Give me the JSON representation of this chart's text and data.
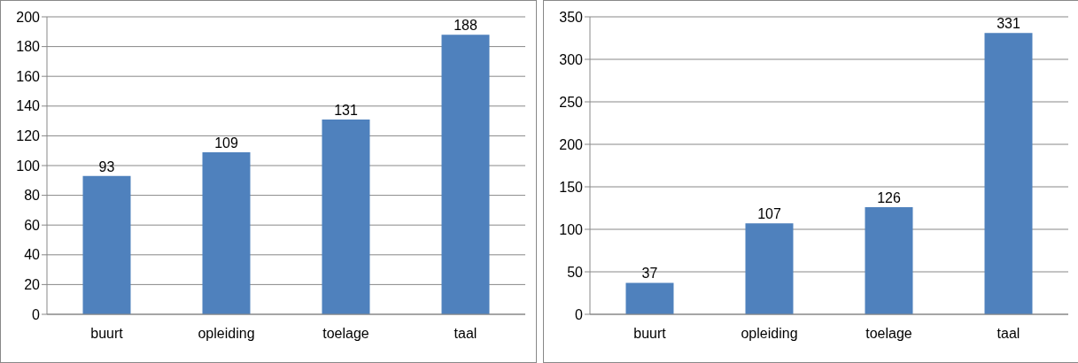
{
  "chart_data": [
    {
      "type": "bar",
      "categories": [
        "buurt",
        "opleiding",
        "toelage",
        "taal"
      ],
      "values": [
        93,
        109,
        131,
        188
      ],
      "color": "#4f81bd",
      "ylim": [
        0,
        200
      ],
      "yticks": [
        0,
        20,
        40,
        60,
        80,
        100,
        120,
        140,
        160,
        180,
        200
      ],
      "grid": "y",
      "data_labels": true
    },
    {
      "type": "bar",
      "categories": [
        "buurt",
        "opleiding",
        "toelage",
        "taal"
      ],
      "values": [
        37,
        107,
        126,
        331
      ],
      "color": "#4f81bd",
      "ylim": [
        0,
        350
      ],
      "yticks": [
        0,
        50,
        100,
        150,
        200,
        250,
        300,
        350
      ],
      "grid": "y",
      "data_labels": true
    }
  ]
}
